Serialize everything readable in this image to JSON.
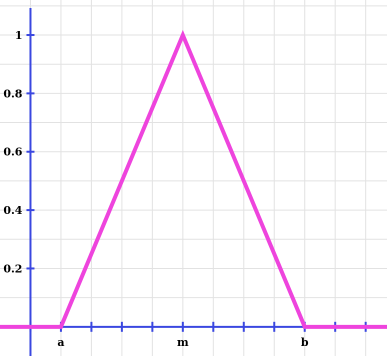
{
  "chart_data": {
    "type": "line",
    "title": "",
    "xlabel": "",
    "ylabel": "",
    "xlim": [
      -2.0,
      10.7
    ],
    "ylim": [
      -0.1,
      1.12
    ],
    "grid": true,
    "x_gridlines": [
      -1,
      0,
      1,
      2,
      3,
      4,
      5,
      6,
      7,
      8,
      9,
      10
    ],
    "y_gridlines": [
      0.1,
      0.2,
      0.3,
      0.4,
      0.5,
      0.6,
      0.7,
      0.8,
      0.9,
      1.0,
      1.1
    ],
    "x_ticks": [
      -1,
      0,
      1,
      2,
      3,
      4,
      5,
      6,
      7,
      8,
      9,
      10
    ],
    "x_tick_labels": [
      {
        "x": 0,
        "label": "a"
      },
      {
        "x": 4,
        "label": "m"
      },
      {
        "x": 8,
        "label": "b"
      }
    ],
    "y_tick_labels": [
      {
        "y": 0.2,
        "label": "0.2"
      },
      {
        "y": 0.4,
        "label": "0.4"
      },
      {
        "y": 0.6,
        "label": "0.6"
      },
      {
        "y": 0.8,
        "label": "0.8"
      },
      {
        "y": 1.0,
        "label": "1"
      }
    ],
    "series": [
      {
        "color": "#ee44dd",
        "points": [
          [
            -2.0,
            0
          ],
          [
            0,
            0
          ],
          [
            4,
            1
          ],
          [
            8,
            0
          ],
          [
            10.7,
            0
          ]
        ]
      }
    ],
    "axis_color": "#3a47e0",
    "grid_color": "#e2e2e2"
  }
}
